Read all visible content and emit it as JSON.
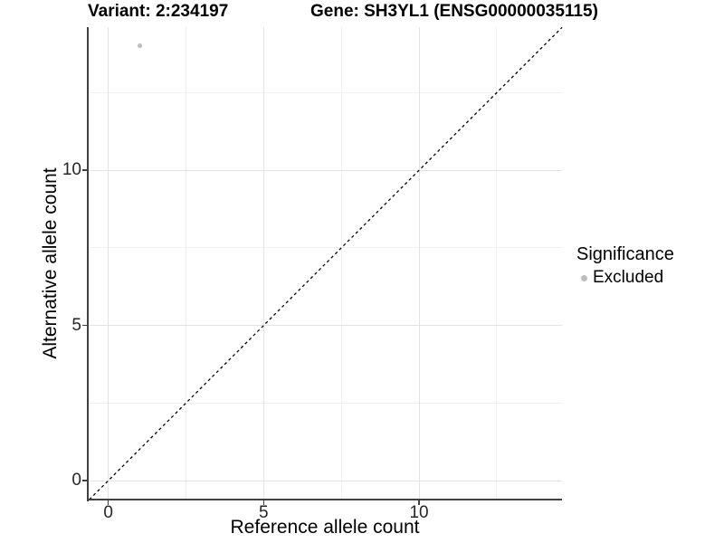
{
  "chart_data": {
    "type": "scatter",
    "title_left": "Variant: 2:234197",
    "title_right": "Gene: SH3YL1 (ENSG00000035115)",
    "xlabel": "Reference allele count",
    "ylabel": "Alternative allele count",
    "xlim": [
      -0.66,
      14.6
    ],
    "ylim": [
      -0.61,
      14.61
    ],
    "xticks": [
      0,
      5,
      10
    ],
    "yticks": [
      0,
      5,
      10
    ],
    "xticks_minor": [
      2.5,
      7.5,
      12.5
    ],
    "yticks_minor": [
      2.5,
      7.5,
      12.5
    ],
    "grid": "major+minor",
    "series": [
      {
        "name": "Excluded",
        "color": "#bdbdbd",
        "marker_diameter_px": 5,
        "points": [
          {
            "x": 1,
            "y": 14
          }
        ]
      }
    ],
    "reference_line": {
      "kind": "identity",
      "slope": 1,
      "intercept": 0,
      "linestyle": "dashed",
      "color": "#000000"
    },
    "legend": {
      "title": "Significance",
      "position": "right",
      "items": [
        {
          "label": "Excluded",
          "color": "#bdbdbd",
          "marker": "circle"
        }
      ]
    }
  },
  "style_colors": {
    "background": "#ffffff",
    "grid_major": "#e3e3e3",
    "grid_minor": "#f0f0f0",
    "axis_line": "#404040",
    "tick_text": "#262626",
    "title_text": "#000000"
  }
}
